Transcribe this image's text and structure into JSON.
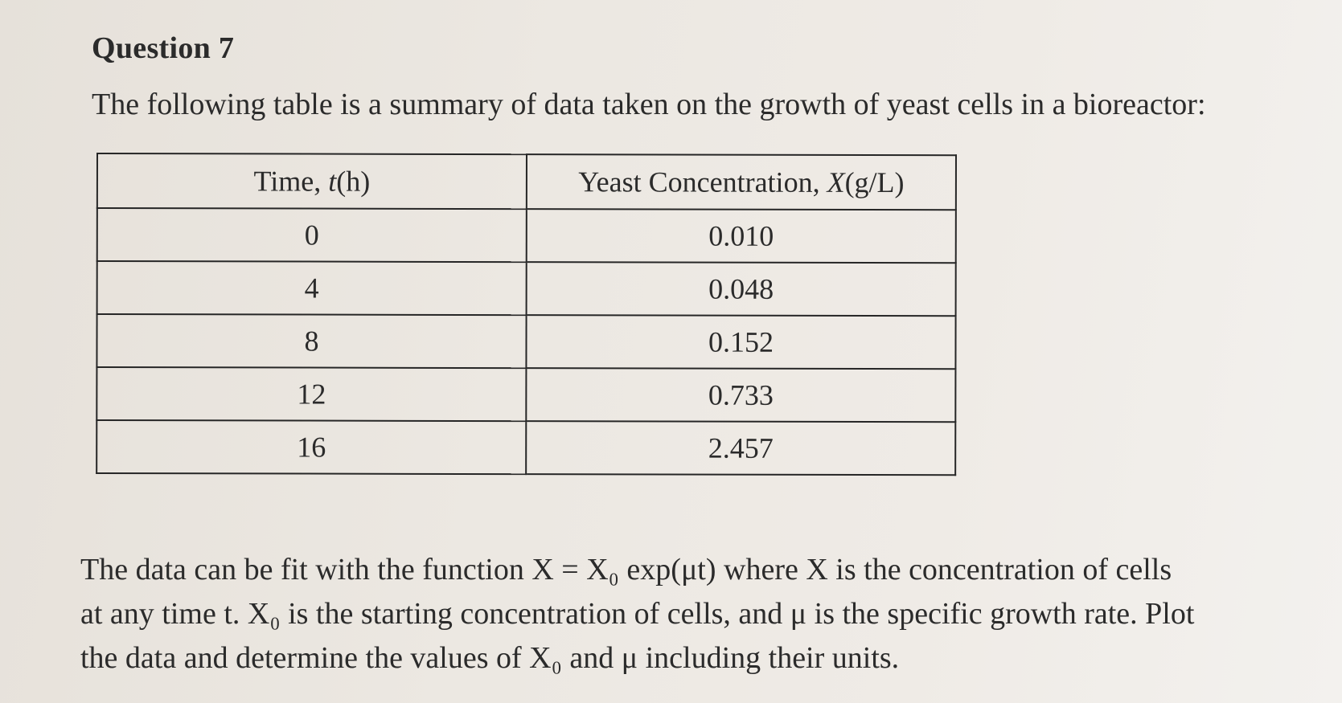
{
  "question": {
    "title": "Question 7",
    "intro": "The following table is a summary of data taken on the growth of yeast cells in a bioreactor:"
  },
  "table": {
    "headers": [
      {
        "prefix": "Time, ",
        "var": "t",
        "suffix": "(h)"
      },
      {
        "prefix": "Yeast Concentration, ",
        "var": "X",
        "suffix": "(g/L)"
      }
    ],
    "rows": [
      {
        "time": "0",
        "concentration": "0.010"
      },
      {
        "time": "4",
        "concentration": "0.048"
      },
      {
        "time": "8",
        "concentration": "0.152"
      },
      {
        "time": "12",
        "concentration": "0.733"
      },
      {
        "time": "16",
        "concentration": "2.457"
      }
    ]
  },
  "body": {
    "lines": [
      "The data can be fit with the function X = X₀ exp(μt) where X is the concentration of cells",
      "at any time t. X₀ is the starting concentration of cells, and μ is the specific growth rate. Plot",
      "the data and determine the values of X₀ and μ including their units."
    ]
  }
}
